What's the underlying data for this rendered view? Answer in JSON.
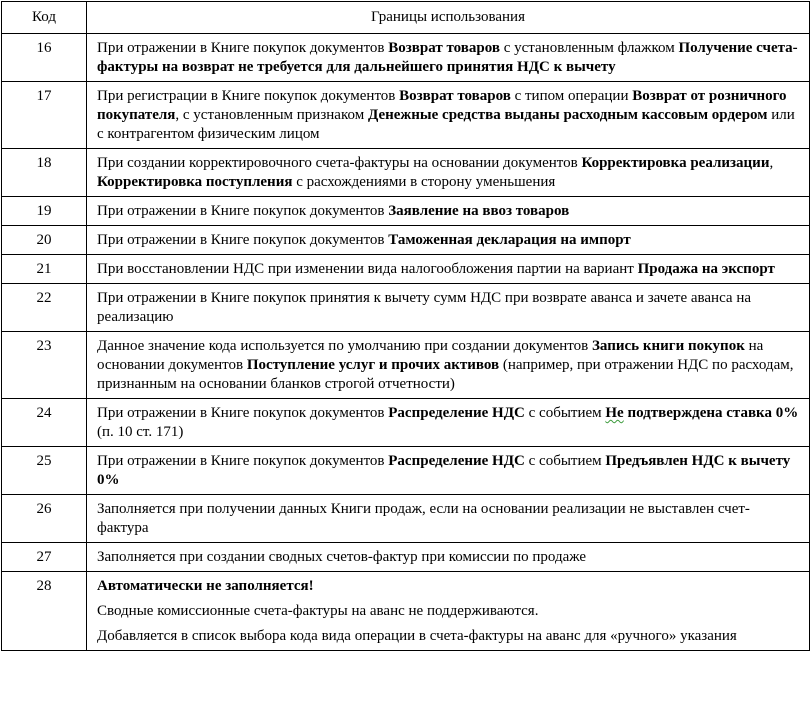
{
  "table": {
    "headers": [
      "Код",
      "Границы использования"
    ],
    "rows": [
      {
        "code": "16",
        "paragraphs": [
          [
            {
              "t": "При отражении в Книге покупок документов "
            },
            {
              "t": "Возврат товаров",
              "b": true
            },
            {
              "t": " с установленным флажком "
            },
            {
              "t": "Получение счета-фактуры на возврат не требуется для дальнейшего принятия НДС к вычету",
              "b": true
            }
          ]
        ]
      },
      {
        "code": "17",
        "paragraphs": [
          [
            {
              "t": "При регистрации в Книге покупок документов "
            },
            {
              "t": "Возврат товаров",
              "b": true
            },
            {
              "t": " с типом операции "
            },
            {
              "t": "Возврат от розничного покупателя",
              "b": true
            },
            {
              "t": ", с установленным признаком "
            },
            {
              "t": "Денежные средства выданы расходным кассовым ордером",
              "b": true
            },
            {
              "t": " или с контрагентом физическим лицом"
            }
          ]
        ]
      },
      {
        "code": "18",
        "paragraphs": [
          [
            {
              "t": "При создании корректировочного счета-фактуры на основании документов "
            },
            {
              "t": "Корректировка реализации",
              "b": true
            },
            {
              "t": ", "
            },
            {
              "t": "Корректировка поступления",
              "b": true
            },
            {
              "t": " с расхождениями в сторону уменьшения"
            }
          ]
        ]
      },
      {
        "code": "19",
        "paragraphs": [
          [
            {
              "t": "При отражении в Книге покупок документов "
            },
            {
              "t": "Заявление на ввоз товаров",
              "b": true
            }
          ]
        ]
      },
      {
        "code": "20",
        "paragraphs": [
          [
            {
              "t": "При отражении в Книге покупок документов "
            },
            {
              "t": "Таможенная декларация на импорт",
              "b": true
            }
          ]
        ]
      },
      {
        "code": "21",
        "paragraphs": [
          [
            {
              "t": "При восстановлении НДС при изменении вида налогообложения партии на вариант "
            },
            {
              "t": "Продажа на экспорт",
              "b": true
            }
          ]
        ]
      },
      {
        "code": "22",
        "paragraphs": [
          [
            {
              "t": "При отражении в Книге покупок принятия к вычету сумм НДС при возврате аванса и зачете аванса на реализацию"
            }
          ]
        ]
      },
      {
        "code": "23",
        "paragraphs": [
          [
            {
              "t": "Данное значение кода используется по умолчанию при создании документов "
            },
            {
              "t": "Запись книги покупок",
              "b": true
            },
            {
              "t": " на основании документов "
            },
            {
              "t": "Поступление услуг и прочих активов",
              "b": true
            },
            {
              "t": " (например, при отражении НДС по расходам, признанным на основании бланков строгой отчетности)"
            }
          ]
        ]
      },
      {
        "code": "24",
        "paragraphs": [
          [
            {
              "t": "При отражении в Книге покупок документов "
            },
            {
              "t": "Распределение НДС",
              "b": true
            },
            {
              "t": " с событием "
            },
            {
              "t": "Не",
              "b": true,
              "squiggle": true
            },
            {
              "t": " подтверждена ставка 0%",
              "b": true
            },
            {
              "t": " (п. 10 ст. 171)"
            }
          ]
        ]
      },
      {
        "code": "25",
        "paragraphs": [
          [
            {
              "t": "При отражении в Книге покупок документов "
            },
            {
              "t": "Распределение НДС",
              "b": true
            },
            {
              "t": " с событием "
            },
            {
              "t": "Предъявлен НДС к вычету 0%",
              "b": true
            }
          ]
        ]
      },
      {
        "code": "26",
        "paragraphs": [
          [
            {
              "t": "Заполняется при получении данных Книги продаж, если на основании реализации не выставлен счет-фактура"
            }
          ]
        ]
      },
      {
        "code": "27",
        "paragraphs": [
          [
            {
              "t": "Заполняется при создании сводных счетов-фактур при комиссии по продаже"
            }
          ]
        ]
      },
      {
        "code": "28",
        "paragraphs": [
          [
            {
              "t": "Автоматически не заполняется!",
              "b": true
            }
          ],
          [
            {
              "t": "Сводные комиссионные счета-фактуры на аванс не поддерживаются."
            }
          ],
          [
            {
              "t": "Добавляется в список выбора кода вида операции в счета-фактуры на аванс для «ручного» указания"
            }
          ]
        ]
      }
    ]
  }
}
